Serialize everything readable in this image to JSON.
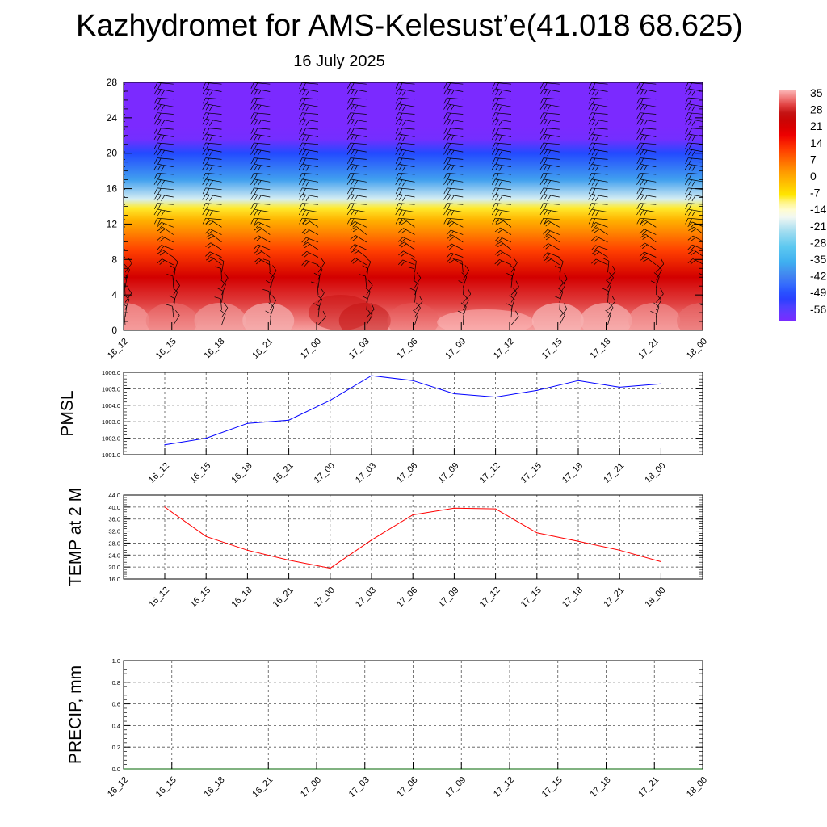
{
  "header": {
    "title": "Kazhydromet for AMS-Kelesust’e(41.018 68.625)",
    "subtitle": "16 July 2025"
  },
  "chart_data": [
    {
      "type": "heatmap",
      "x_ticks": [
        "16_12",
        "16_15",
        "16_18",
        "16_21",
        "17_00",
        "17_03",
        "17_06",
        "17_09",
        "17_12",
        "17_15",
        "17_18",
        "17_21",
        "18_00"
      ],
      "y_ticks": [
        "0",
        "4",
        "8",
        "12",
        "16",
        "20",
        "24",
        "28"
      ],
      "ylim": [
        0,
        28
      ],
      "colorbar_labels": [
        "35",
        "28",
        "21",
        "14",
        "7",
        "0",
        "-7",
        "-14",
        "-21",
        "-28",
        "-35",
        "-42",
        "-49",
        "-56"
      ],
      "temperature_profile": [
        {
          "height": 0,
          "temp": 35
        },
        {
          "height": 3,
          "temp": 30
        },
        {
          "height": 6,
          "temp": 22
        },
        {
          "height": 9,
          "temp": 12
        },
        {
          "height": 12.5,
          "temp": 0
        },
        {
          "height": 13.8,
          "temp": -7
        },
        {
          "height": 14.8,
          "temp": -17
        },
        {
          "height": 17,
          "temp": -35
        },
        {
          "height": 20,
          "temp": -46
        },
        {
          "height": 21.6,
          "temp": -56
        },
        {
          "height": 23,
          "temp": -57
        },
        {
          "height": 28,
          "temp": -57
        }
      ],
      "overlay": "wind barbs",
      "colors": {
        "warm": "#ff0000",
        "cold": "#7b2aff"
      }
    },
    {
      "type": "line",
      "ylabel": "PMSL",
      "x": [
        "16_12",
        "16_15",
        "16_18",
        "16_21",
        "17_00",
        "17_03",
        "17_06",
        "17_09",
        "17_12",
        "17_15",
        "17_18",
        "17_21",
        "18_00"
      ],
      "y_ticks": [
        "1001.0",
        "1002.0",
        "1003.0",
        "1004.0",
        "1005.0",
        "1006.0"
      ],
      "ylim": [
        1001.0,
        1006.0
      ],
      "series": [
        {
          "values": [
            1001.6,
            1002.0,
            1002.9,
            1003.1,
            1004.3,
            1005.8,
            1005.5,
            1004.7,
            1004.5,
            1004.9,
            1005.5,
            1005.1,
            1005.3
          ],
          "color": "#0000ff"
        }
      ],
      "grid": true
    },
    {
      "type": "line",
      "ylabel": "TEMP at 2 M",
      "x": [
        "16_12",
        "16_15",
        "16_18",
        "16_21",
        "17_00",
        "17_03",
        "17_06",
        "17_09",
        "17_12",
        "17_15",
        "17_18",
        "17_21",
        "18_00"
      ],
      "y_ticks": [
        "16.0",
        "20.0",
        "24.0",
        "28.0",
        "32.0",
        "36.0",
        "40.0",
        "44.0"
      ],
      "y_tick_values": [
        16.0,
        20.0,
        24.0,
        28.0,
        32.0,
        36.0,
        40.0,
        44.0
      ],
      "ylim": [
        16.0,
        44.0
      ],
      "series": [
        {
          "values": [
            40.0,
            30.2,
            25.6,
            22.3,
            19.6,
            29.0,
            37.4,
            39.6,
            39.4,
            31.4,
            28.6,
            25.6,
            21.8
          ],
          "color": "#ff0000"
        }
      ],
      "grid": true
    },
    {
      "type": "line",
      "ylabel": "PRECIP, mm",
      "x": [
        "16_12",
        "16_15",
        "16_18",
        "16_21",
        "17_00",
        "17_03",
        "17_06",
        "17_09",
        "17_12",
        "17_15",
        "17_18",
        "17_21",
        "18_00"
      ],
      "y_ticks": [
        "0.0",
        "0.2",
        "0.4",
        "0.6",
        "0.8",
        "1.0"
      ],
      "ylim": [
        0.0,
        1.0
      ],
      "series": [
        {
          "values": [
            0,
            0,
            0,
            0,
            0,
            0,
            0,
            0,
            0,
            0,
            0,
            0,
            0
          ],
          "color": "#006400"
        }
      ],
      "grid": true
    }
  ]
}
